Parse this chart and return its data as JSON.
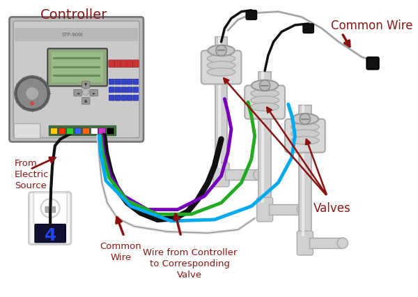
{
  "bg_color": "#ffffff",
  "label_color": "#8b1515",
  "labels": {
    "controller": "Controller",
    "common_wire_top": "Common Wire",
    "from_electric": "From\nElectric\nSource",
    "wire_from_ctrl": "Wire from Controller\nto Corresponding\nValve",
    "common_wire_bottom": "Common\nWire",
    "valves": "Valves"
  },
  "outlet_number": "4",
  "outlet_number_color": "#2244ff",
  "controller_color": "#c8c8c8",
  "controller_border": "#888888",
  "screen_color": "#9aac88",
  "dial_color": "#aaaaaa",
  "pipe_color": "#d0d0d0",
  "pipe_border": "#aaaaaa",
  "wire_colors": {
    "black": "#111111",
    "purple": "#7700bb",
    "green": "#22aa22",
    "blue": "#00aaee",
    "white": "#e8e8e8"
  },
  "arrow_color": "#8b1010",
  "figsize": [
    6.0,
    4.27
  ],
  "dpi": 100
}
